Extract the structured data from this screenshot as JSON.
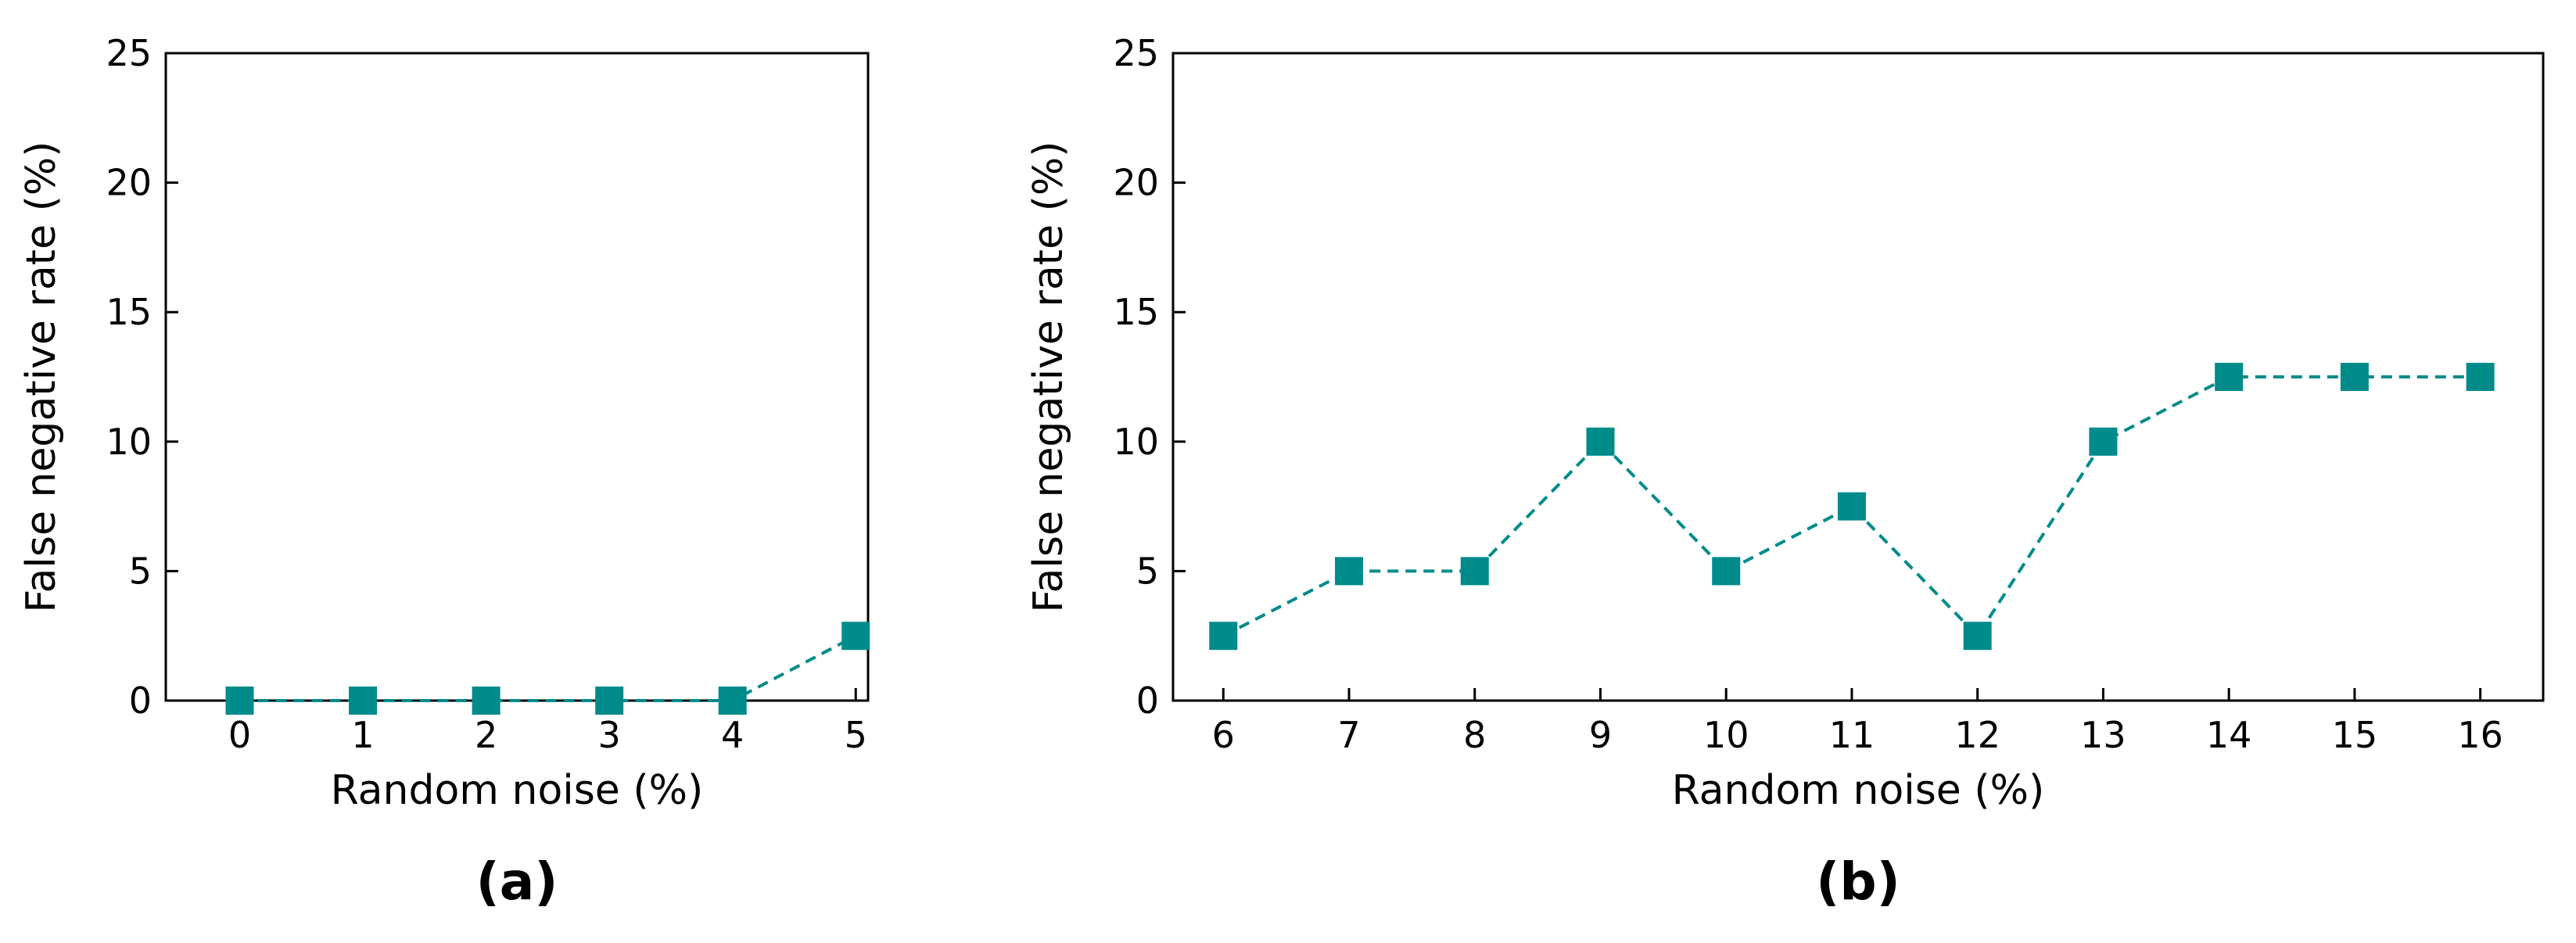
{
  "colors": {
    "series": "#008b8b",
    "axis": "#000000",
    "background": "#ffffff"
  },
  "chart_data": [
    {
      "type": "line",
      "panel_label": "(a)",
      "xlabel": "Random noise (%)",
      "ylabel": "False negative rate (%)",
      "x": [
        0,
        1,
        2,
        3,
        4,
        5
      ],
      "series": [
        {
          "values": [
            0,
            0,
            0,
            0,
            0,
            2.5
          ]
        }
      ],
      "xlim": [
        -0.6,
        5.1
      ],
      "ylim": [
        0,
        25
      ],
      "xticks": [
        0,
        1,
        2,
        3,
        4,
        5
      ],
      "yticks": [
        0,
        5,
        10,
        15,
        20,
        25
      ],
      "line_style": "dashed",
      "marker": "square",
      "grid": false,
      "legend": "none"
    },
    {
      "type": "line",
      "panel_label": "(b)",
      "xlabel": "Random noise (%)",
      "ylabel": "False negative rate (%)",
      "x": [
        6,
        7,
        8,
        9,
        10,
        11,
        12,
        13,
        14,
        15,
        16
      ],
      "series": [
        {
          "values": [
            2.5,
            5,
            5,
            10,
            5,
            7.5,
            2.5,
            10,
            12.5,
            12.5,
            12.5
          ]
        }
      ],
      "xlim": [
        5.6,
        16.5
      ],
      "ylim": [
        0,
        25
      ],
      "xticks": [
        6,
        7,
        8,
        9,
        10,
        11,
        12,
        13,
        14,
        15,
        16
      ],
      "yticks": [
        0,
        5,
        10,
        15,
        20,
        25
      ],
      "line_style": "dashed",
      "marker": "square",
      "grid": false,
      "legend": "none"
    }
  ]
}
